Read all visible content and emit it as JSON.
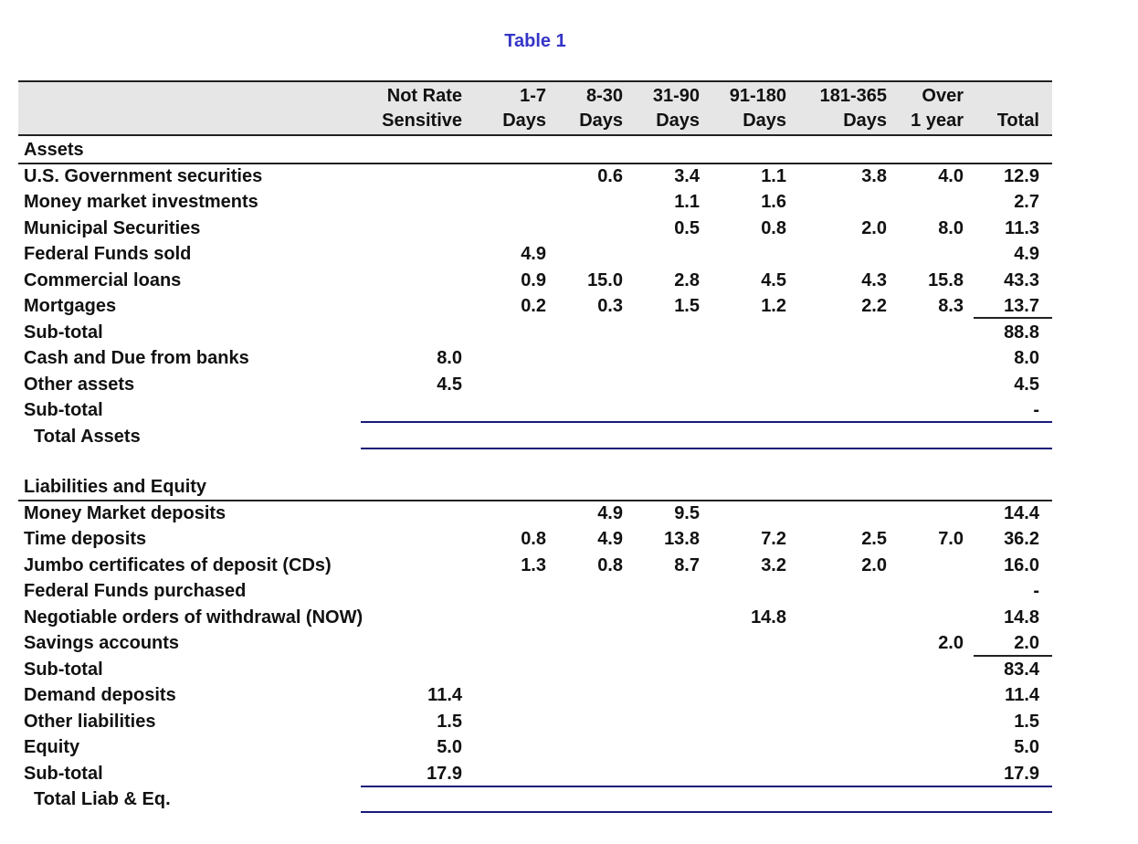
{
  "title": "Table 1",
  "headers": [
    {
      "line1": "Not Rate",
      "line2": "Sensitive"
    },
    {
      "line1": "1-7",
      "line2": "Days"
    },
    {
      "line1": "8-30",
      "line2": "Days"
    },
    {
      "line1": "31-90",
      "line2": "Days"
    },
    {
      "line1": "91-180",
      "line2": "Days"
    },
    {
      "line1": "181-365",
      "line2": "Days"
    },
    {
      "line1": "Over",
      "line2": "1 year"
    },
    {
      "line1": "",
      "line2": "Total"
    }
  ],
  "assets": {
    "section_label": "Assets",
    "rows": [
      {
        "label": "U.S. Government securities",
        "values": [
          "",
          "",
          "0.6",
          "3.4",
          "1.1",
          "3.8",
          "4.0",
          "12.9"
        ]
      },
      {
        "label": "Money market investments",
        "values": [
          "",
          "",
          "",
          "1.1",
          "1.6",
          "",
          "",
          "2.7"
        ]
      },
      {
        "label": "Municipal Securities",
        "values": [
          "",
          "",
          "",
          "0.5",
          "0.8",
          "2.0",
          "8.0",
          "11.3"
        ]
      },
      {
        "label": "Federal Funds sold",
        "values": [
          "",
          "4.9",
          "",
          "",
          "",
          "",
          "",
          "4.9"
        ]
      },
      {
        "label": "Commercial loans",
        "values": [
          "",
          "0.9",
          "15.0",
          "2.8",
          "4.5",
          "4.3",
          "15.8",
          "43.3"
        ]
      },
      {
        "label": "Mortgages",
        "values": [
          "",
          "0.2",
          "0.3",
          "1.5",
          "1.2",
          "2.2",
          "8.3",
          "13.7"
        ]
      },
      {
        "label": "Sub-total",
        "values": [
          "",
          "",
          "",
          "",
          "",
          "",
          "",
          "88.8"
        ]
      },
      {
        "label": "Cash and Due from banks",
        "values": [
          "8.0",
          "",
          "",
          "",
          "",
          "",
          "",
          "8.0"
        ]
      },
      {
        "label": "Other assets",
        "values": [
          "4.5",
          "",
          "",
          "",
          "",
          "",
          "",
          "4.5"
        ]
      },
      {
        "label": "Sub-total",
        "values": [
          "",
          "",
          "",
          "",
          "",
          "",
          "",
          "-"
        ]
      }
    ],
    "total_label": "Total Assets"
  },
  "liabilities": {
    "section_label": "Liabilities and Equity",
    "rows": [
      {
        "label": "Money Market deposits",
        "values": [
          "",
          "",
          "4.9",
          "9.5",
          "",
          "",
          "",
          "14.4"
        ]
      },
      {
        "label": "Time deposits",
        "values": [
          "",
          "0.8",
          "4.9",
          "13.8",
          "7.2",
          "2.5",
          "7.0",
          "36.2"
        ]
      },
      {
        "label": "Jumbo certificates of deposit (CDs)",
        "values": [
          "",
          "1.3",
          "0.8",
          "8.7",
          "3.2",
          "2.0",
          "",
          "16.0"
        ]
      },
      {
        "label": "Federal Funds purchased",
        "values": [
          "",
          "",
          "",
          "",
          "",
          "",
          "",
          "-"
        ]
      },
      {
        "label": "Negotiable orders of withdrawal (NOW)",
        "values": [
          "",
          "",
          "",
          "",
          "14.8",
          "",
          "",
          "14.8"
        ]
      },
      {
        "label": "Savings accounts",
        "values": [
          "",
          "",
          "",
          "",
          "",
          "",
          "2.0",
          "2.0"
        ]
      },
      {
        "label": "Sub-total",
        "values": [
          "",
          "",
          "",
          "",
          "",
          "",
          "",
          "83.4"
        ]
      },
      {
        "label": "Demand deposits",
        "values": [
          "11.4",
          "",
          "",
          "",
          "",
          "",
          "",
          "11.4"
        ]
      },
      {
        "label": "Other liabilities",
        "values": [
          "1.5",
          "",
          "",
          "",
          "",
          "",
          "",
          "1.5"
        ]
      },
      {
        "label": "Equity",
        "values": [
          "5.0",
          "",
          "",
          "",
          "",
          "",
          "",
          "5.0"
        ]
      },
      {
        "label": "Sub-total",
        "values": [
          "17.9",
          "",
          "",
          "",
          "",
          "",
          "",
          "17.9"
        ]
      }
    ],
    "total_label": "Total Liab & Eq."
  }
}
